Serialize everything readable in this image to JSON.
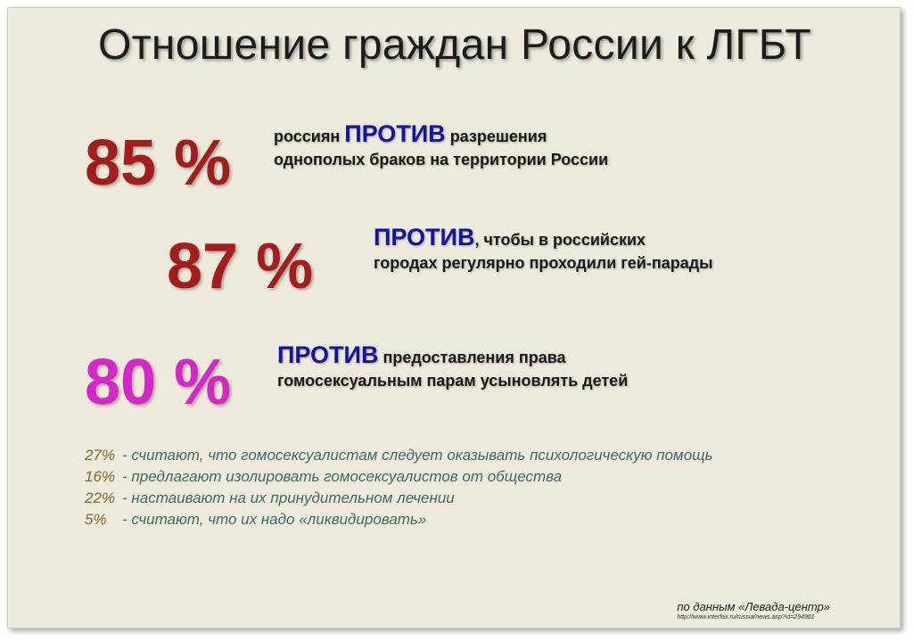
{
  "title": "Отношение граждан России к ЛГБТ",
  "colors": {
    "background": "#eeeadb",
    "percent_red": "#a31d1d",
    "percent_magenta": "#d626c8",
    "keyword_blue": "#14149c",
    "notes_text": "#3c6a66",
    "notes_number": "#806a2e"
  },
  "stats": [
    {
      "percent": "85 %",
      "lines": [
        {
          "before": "россиян ",
          "keyword": "ПРОТИВ",
          "after": " разрешения"
        },
        {
          "before": "",
          "keyword": "",
          "after": "однополых браков на территории России"
        }
      ]
    },
    {
      "percent": "87 %",
      "lines": [
        {
          "before": "",
          "keyword": "ПРОТИВ",
          "after": ", чтобы в российских"
        },
        {
          "before": "",
          "keyword": "",
          "after": "городах регулярно проходили гей-парады"
        }
      ]
    },
    {
      "percent": "80 %",
      "lines": [
        {
          "before": "",
          "keyword": "ПРОТИВ",
          "after": " предоставления права"
        },
        {
          "before": "",
          "keyword": "",
          "after": "гомосексуальным парам усыновлять детей"
        }
      ]
    }
  ],
  "notes": [
    {
      "num": "27%",
      "text": "- считают, что гомосексуалистам следует оказывать психологическую помощь"
    },
    {
      "num": "16%",
      "text": "- предлагают изолировать гомосексуалистов от общества"
    },
    {
      "num": "22%",
      "text": "- настаивают на их принудительном лечении"
    },
    {
      "num": "5%",
      "text": "- считают, что их надо «ликвидировать»"
    }
  ],
  "source": {
    "label": "по данным «Левада-центр»",
    "url": "http://www.interfax.ru/russia/news.asp?id=294961"
  }
}
